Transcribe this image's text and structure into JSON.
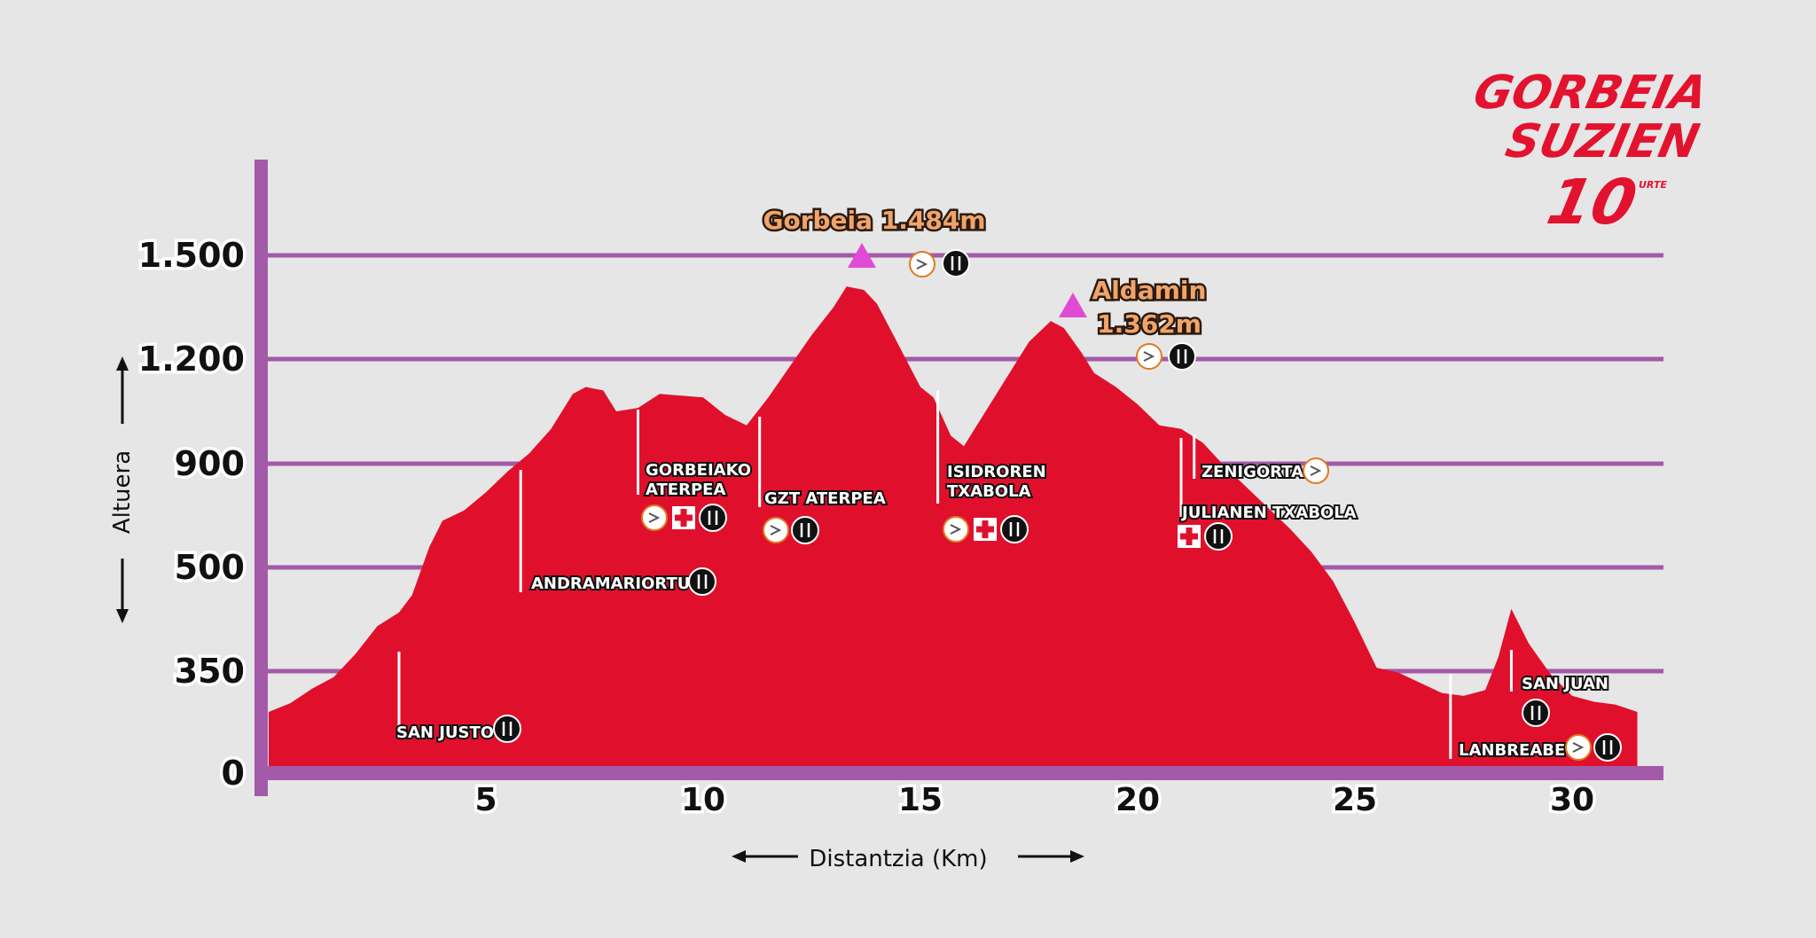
{
  "colors": {
    "background": "#e6e6e6",
    "area": "#e0102d",
    "grid": "#a35aa8",
    "axis": "#a35aa8",
    "marker": "#e04bd6",
    "peak_label": "#f0a46a",
    "logo": "#e3122e"
  },
  "logo": {
    "line1": "GORBEIA",
    "line2": "SUZIEN",
    "line3": "10",
    "line4": "URTE"
  },
  "chart_data": {
    "type": "area",
    "xlabel": "Distantzia (Km)",
    "ylabel": "Altuera",
    "xlim": [
      0,
      32.5
    ],
    "x_ticks": [
      5,
      10,
      15,
      20,
      25,
      30
    ],
    "y_ticks": [
      {
        "value": 0,
        "label": "0"
      },
      {
        "value": 350,
        "label": "350"
      },
      {
        "value": 500,
        "label": "500"
      },
      {
        "value": 900,
        "label": "900"
      },
      {
        "value": 1200,
        "label": "1.200"
      },
      {
        "value": 1500,
        "label": "1.500"
      }
    ],
    "grid": "horizontal",
    "profile": {
      "x": [
        0,
        0.5,
        1,
        1.5,
        2,
        2.5,
        3,
        3.3,
        3.7,
        4,
        4.5,
        5,
        5.5,
        6,
        6.5,
        7,
        7.3,
        7.7,
        8,
        8.5,
        9,
        9.5,
        10,
        10.5,
        11,
        11.5,
        12,
        12.5,
        13,
        13.3,
        13.7,
        14,
        14.5,
        15,
        15.3,
        15.7,
        16,
        16.5,
        17,
        17.5,
        18,
        18.3,
        18.7,
        19,
        19.5,
        20,
        20.5,
        21,
        21.5,
        22,
        22.5,
        23,
        23.5,
        24,
        24.5,
        25,
        25.5,
        26,
        26.5,
        27,
        27.5,
        28,
        28.3,
        28.6,
        29,
        29.5,
        30,
        30.5,
        31,
        31.5
      ],
      "y": [
        210,
        240,
        290,
        330,
        375,
        415,
        435,
        460,
        580,
        680,
        720,
        790,
        870,
        930,
        1000,
        1100,
        1120,
        1110,
        1050,
        1060,
        1100,
        1095,
        1090,
        1040,
        1010,
        1090,
        1180,
        1270,
        1350,
        1410,
        1400,
        1360,
        1240,
        1120,
        1090,
        980,
        950,
        1050,
        1150,
        1250,
        1310,
        1290,
        1220,
        1160,
        1120,
        1070,
        1010,
        1000,
        960,
        890,
        810,
        730,
        650,
        560,
        480,
        420,
        355,
        345,
        310,
        275,
        265,
        285,
        370,
        440,
        390,
        340,
        265,
        245,
        235,
        210
      ]
    },
    "peaks": [
      {
        "name": "Gorbeia 1.484m",
        "x": 13.7,
        "y": 1484
      },
      {
        "name": "Aldamin",
        "name2": "1.362m",
        "x": 18.7,
        "y": 1362
      }
    ],
    "points": [
      {
        "name": "SAN JUSTO",
        "x": 3.0,
        "y": 420,
        "icons": [
          "food"
        ]
      },
      {
        "name": "ANDRAMARIORTU",
        "x": 5.8,
        "y": 900,
        "icons": [
          "food"
        ]
      },
      {
        "name": "GORBEIAKO",
        "name2": "ATERPEA",
        "x": 8.5,
        "y": 1050,
        "icons": [
          "clock",
          "first-aid",
          "food"
        ]
      },
      {
        "name": "GZT ATERPEA",
        "x": 11.3,
        "y": 1010,
        "icons": [
          "clock",
          "food"
        ]
      },
      {
        "name": "ISIDROREN",
        "name2": "TXABOLA",
        "x": 15.4,
        "y": 1080,
        "icons": [
          "clock",
          "first-aid",
          "food"
        ]
      },
      {
        "name": "ZENIGORTA",
        "x": 21.3,
        "y": 980,
        "icons": [
          "clock"
        ]
      },
      {
        "name": "JULIANEN TXABOLA",
        "x": 21.0,
        "y": 990,
        "icons": [
          "first-aid",
          "food"
        ]
      },
      {
        "name": "SAN JUAN",
        "x": 28.6,
        "y": 440,
        "icons": [
          "food"
        ]
      },
      {
        "name": "LANBREABE",
        "x": 27.2,
        "y": 280,
        "icons": [
          "clock",
          "food"
        ]
      }
    ]
  }
}
